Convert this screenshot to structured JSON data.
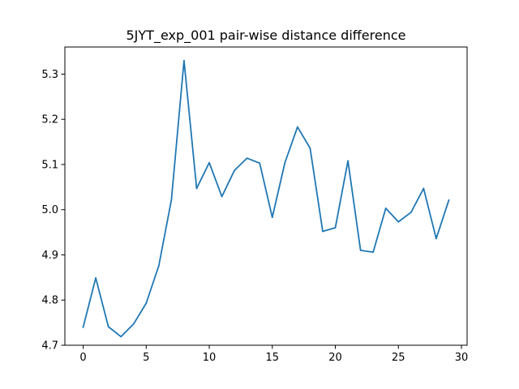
{
  "chart_data": {
    "type": "line",
    "title": "5JYT_exp_001 pair-wise distance difference",
    "xlabel": "",
    "ylabel": "",
    "xlim": [
      -1.45,
      30.45
    ],
    "ylim": [
      4.7,
      5.36
    ],
    "x_ticks": [
      0,
      5,
      10,
      15,
      20,
      25,
      30
    ],
    "y_ticks": [
      4.7,
      4.8,
      4.9,
      5.0,
      5.1,
      5.2,
      5.3
    ],
    "y_tick_labels": [
      "4.7",
      "4.8",
      "4.9",
      "5.0",
      "5.1",
      "5.2",
      "5.3"
    ],
    "grid": false,
    "series": [
      {
        "name": "pair-wise distance difference",
        "color": "#1f77b4",
        "x": [
          0,
          1,
          2,
          3,
          4,
          5,
          6,
          7,
          8,
          9,
          10,
          11,
          12,
          13,
          14,
          15,
          16,
          17,
          18,
          19,
          20,
          21,
          22,
          23,
          24,
          25,
          26,
          27,
          28,
          29
        ],
        "values": [
          4.74,
          4.849,
          4.741,
          4.719,
          4.747,
          4.793,
          4.876,
          5.022,
          5.33,
          5.047,
          5.104,
          5.029,
          5.087,
          5.114,
          5.103,
          4.983,
          5.104,
          5.183,
          5.136,
          4.952,
          4.96,
          5.108,
          4.91,
          4.906,
          5.003,
          4.973,
          4.994,
          5.047,
          4.936,
          5.021
        ]
      }
    ]
  }
}
